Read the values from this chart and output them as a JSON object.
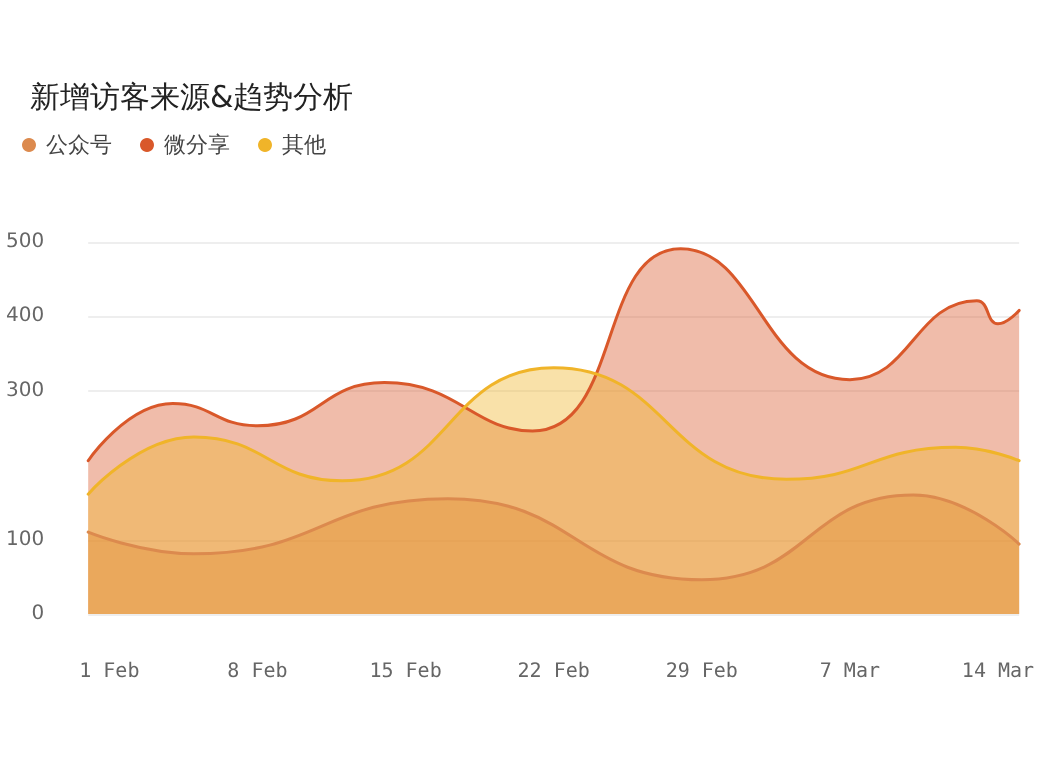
{
  "chart_data": {
    "type": "area",
    "title": "新增访客来源&趋势分析",
    "legend": "top left",
    "grid": "y",
    "marker": "none",
    "line_style": "solid",
    "xlim": [
      "--01-31",
      "--03-15"
    ],
    "xticks": [
      {
        "value": "--02-01",
        "label": "1 Feb"
      },
      {
        "value": "--02-08",
        "label": "8 Feb"
      },
      {
        "value": "--02-15",
        "label": "15 Feb"
      },
      {
        "value": "--02-22",
        "label": "22 Feb"
      },
      {
        "value": "--02-29",
        "label": "29 Feb"
      },
      {
        "value": "--03-07",
        "label": "7 Mar"
      },
      {
        "value": "--03-14",
        "label": "14 Mar"
      }
    ],
    "ylim": [
      0,
      500
    ],
    "yticks": [
      0,
      100,
      300,
      400,
      500
    ],
    "series": [
      {
        "name": "公众号",
        "color": "#dc8a4e",
        "x": [
          "--01-31",
          "--02-05",
          "--02-17",
          "--02-29",
          "--03-10",
          "--03-15"
        ],
        "values": [
          110,
          81,
          155,
          46,
          160,
          94
        ]
      },
      {
        "name": "微分享",
        "color": "#d9582a",
        "x": [
          "--01-31",
          "--02-04",
          "--02-08",
          "--02-14",
          "--02-21",
          "--02-28",
          "--03-07",
          "--03-13",
          "--03-14",
          "--03-15"
        ],
        "values": [
          206,
          283,
          253,
          311,
          246,
          491,
          315,
          421,
          390,
          408
        ]
      },
      {
        "name": "其他",
        "color": "#f0b429",
        "x": [
          "--01-31",
          "--02-05",
          "--02-12",
          "--02-22",
          "--03-04",
          "--03-12",
          "--03-15"
        ],
        "values": [
          161,
          238,
          179,
          331,
          181,
          224,
          206
        ]
      }
    ]
  }
}
